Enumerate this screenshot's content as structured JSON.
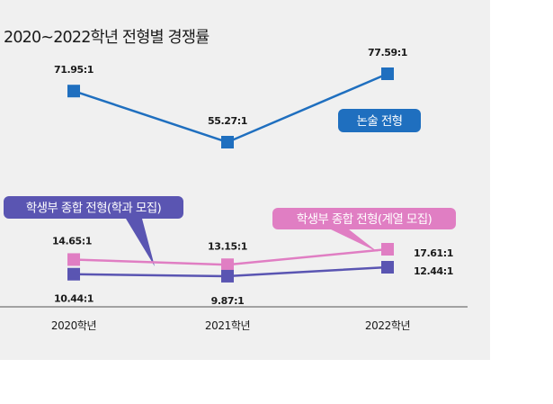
{
  "chart_data": {
    "type": "line",
    "title": "2020~2022학년 전형별 경쟁률",
    "categories": [
      "2020학년",
      "2021학년",
      "2022학년"
    ],
    "series": [
      {
        "name": "논술 전형",
        "values": [
          71.95,
          55.27,
          77.59
        ],
        "labels": [
          "71.95:1",
          "55.27:1",
          "77.59:1"
        ],
        "color": "#1f6fbf",
        "segment": "upper"
      },
      {
        "name": "학생부 종합 전형(계열 모집)",
        "values": [
          14.65,
          13.15,
          17.61
        ],
        "labels": [
          "14.65:1",
          "13.15:1",
          "17.61:1"
        ],
        "color": "#e07ec3",
        "segment": "lower"
      },
      {
        "name": "학생부 종합 전형(학과 모집)",
        "values": [
          10.44,
          9.87,
          12.44
        ],
        "labels": [
          "10.44:1",
          "9.87:1",
          "12.44:1"
        ],
        "color": "#5a55b2",
        "segment": "lower"
      }
    ],
    "axis_break": true,
    "grid": false,
    "legend": "callouts"
  }
}
